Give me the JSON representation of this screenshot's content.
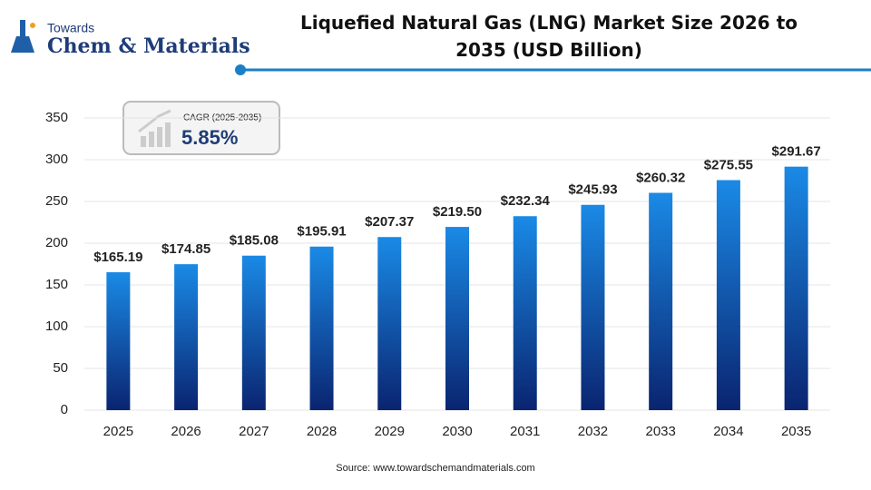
{
  "logo": {
    "line1": "Towards",
    "line2": "Chem & Materials"
  },
  "chart_data": {
    "type": "bar",
    "title": "Liquefied Natural Gas (LNG) Market Size 2026 to 2035 (USD Billion)",
    "categories": [
      "2025",
      "2026",
      "2027",
      "2028",
      "2029",
      "2030",
      "2031",
      "2032",
      "2033",
      "2034",
      "2035"
    ],
    "values": [
      165.19,
      174.85,
      185.08,
      195.91,
      207.37,
      219.5,
      232.34,
      245.93,
      260.32,
      275.55,
      291.67
    ],
    "value_labels": [
      "$165.19",
      "$174.85",
      "$185.08",
      "$195.91",
      "$207.37",
      "$219.50",
      "$232.34",
      "$245.93",
      "$260.32",
      "$275.55",
      "$291.67"
    ],
    "color": "#1a8ae6",
    "ylim": [
      0,
      350
    ],
    "yticks": [
      0,
      50,
      100,
      150,
      200,
      250,
      300,
      350
    ],
    "grid": true,
    "annotation": {
      "label": "CAGR (2025-2035)",
      "value": "5.85%"
    },
    "source": "Source: www.towardschemandmaterials.com"
  }
}
